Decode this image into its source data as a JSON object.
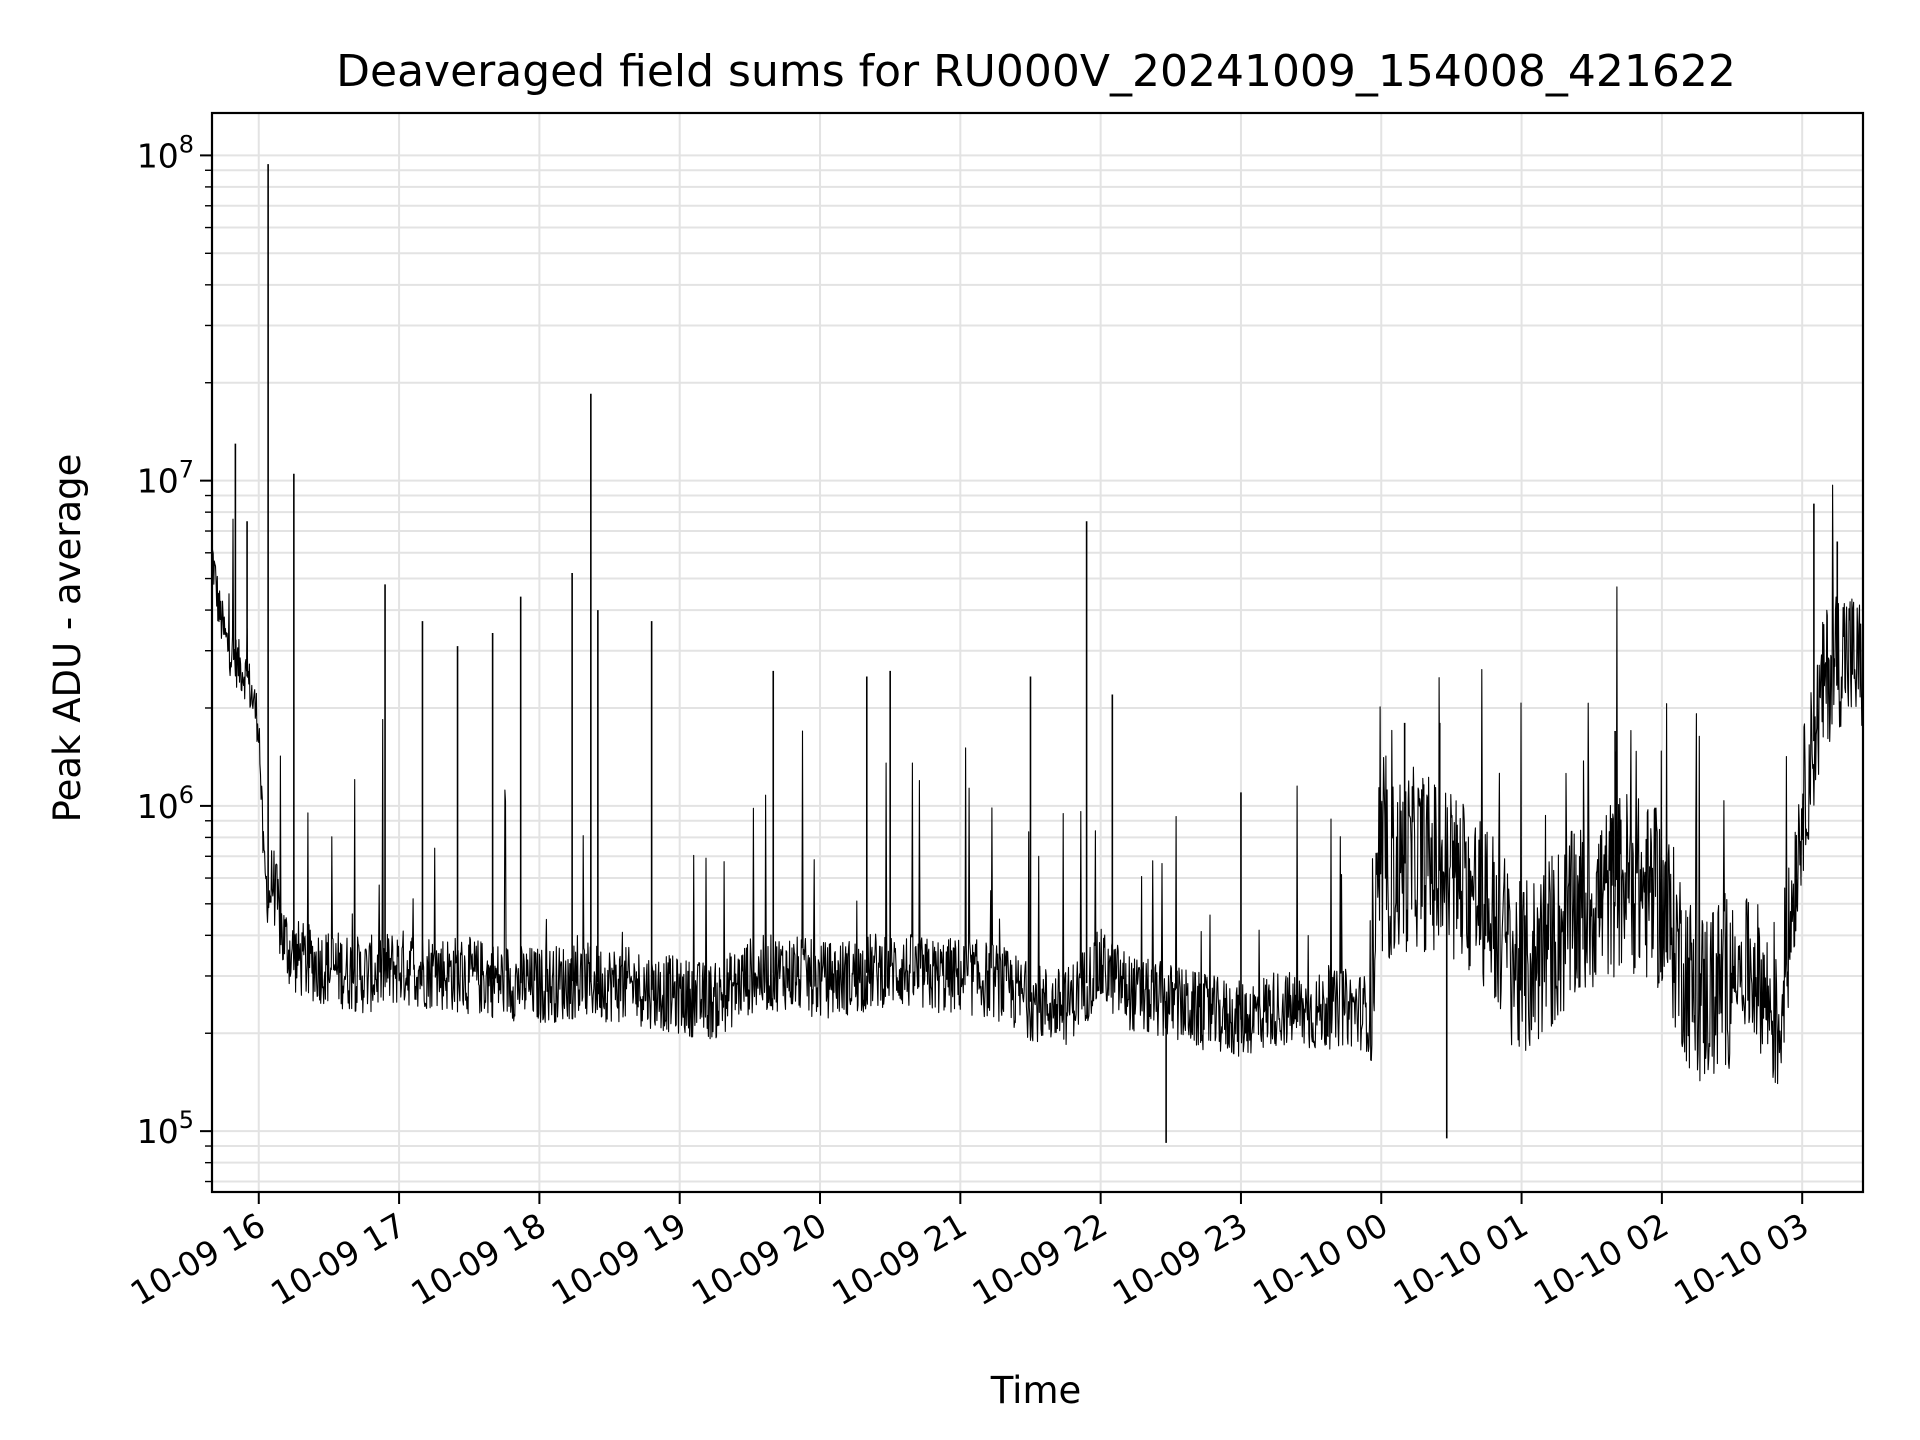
{
  "chart_data": {
    "type": "line",
    "title": "Deaveraged field sums for RU000V_20241009_154008_421622",
    "xlabel": "Time",
    "ylabel": "Peak ADU - average",
    "yscale": "log",
    "ylim": [
      65000,
      135000000
    ],
    "xlim": [
      "2024-10-09 15:40",
      "2024-10-10 03:26"
    ],
    "x_ticks": [
      {
        "t": "2024-10-09 16:00",
        "label": "10-09 16"
      },
      {
        "t": "2024-10-09 17:00",
        "label": "10-09 17"
      },
      {
        "t": "2024-10-09 18:00",
        "label": "10-09 18"
      },
      {
        "t": "2024-10-09 19:00",
        "label": "10-09 19"
      },
      {
        "t": "2024-10-09 20:00",
        "label": "10-09 20"
      },
      {
        "t": "2024-10-09 21:00",
        "label": "10-09 21"
      },
      {
        "t": "2024-10-09 22:00",
        "label": "10-09 22"
      },
      {
        "t": "2024-10-09 23:00",
        "label": "10-09 23"
      },
      {
        "t": "2024-10-10 00:00",
        "label": "10-10 00"
      },
      {
        "t": "2024-10-10 01:00",
        "label": "10-10 01"
      },
      {
        "t": "2024-10-10 02:00",
        "label": "10-10 02"
      },
      {
        "t": "2024-10-10 03:00",
        "label": "10-10 03"
      }
    ],
    "y_ticks": [
      {
        "value": 100000,
        "base": "10",
        "exp": "5"
      },
      {
        "value": 1000000,
        "base": "10",
        "exp": "6"
      },
      {
        "value": 10000000,
        "base": "10",
        "exp": "7"
      },
      {
        "value": 100000000,
        "base": "10",
        "exp": "8"
      }
    ],
    "grid": true,
    "line_color": "#000000",
    "series": [
      {
        "x": [
          "2024-10-09 15:40",
          "2024-10-09 15:43",
          "2024-10-09 15:46",
          "2024-10-09 15:50",
          "2024-10-09 15:55",
          "2024-10-09 16:00",
          "2024-10-09 16:02",
          "2024-10-09 16:04",
          "2024-10-09 16:06",
          "2024-10-09 16:10",
          "2024-10-09 16:14",
          "2024-10-09 16:20",
          "2024-10-09 16:30",
          "2024-10-09 16:45",
          "2024-10-09 17:00",
          "2024-10-09 17:15",
          "2024-10-09 17:30",
          "2024-10-09 17:45",
          "2024-10-09 18:00",
          "2024-10-09 18:15",
          "2024-10-09 18:30",
          "2024-10-09 18:45",
          "2024-10-09 19:00",
          "2024-10-09 19:15",
          "2024-10-09 19:30",
          "2024-10-09 19:45",
          "2024-10-09 20:00",
          "2024-10-09 20:15",
          "2024-10-09 20:30",
          "2024-10-09 20:45",
          "2024-10-09 21:00",
          "2024-10-09 21:15",
          "2024-10-09 21:30",
          "2024-10-09 21:45",
          "2024-10-09 22:00",
          "2024-10-09 22:15",
          "2024-10-09 22:30",
          "2024-10-09 22:45",
          "2024-10-09 23:00",
          "2024-10-09 23:15",
          "2024-10-09 23:30",
          "2024-10-09 23:45",
          "2024-10-09 23:55",
          "2024-10-10 00:00",
          "2024-10-10 00:15",
          "2024-10-10 00:30",
          "2024-10-10 00:45",
          "2024-10-10 01:00",
          "2024-10-10 01:15",
          "2024-10-10 01:30",
          "2024-10-10 01:45",
          "2024-10-10 02:00",
          "2024-10-10 02:15",
          "2024-10-10 02:30",
          "2024-10-10 02:40",
          "2024-10-10 02:50",
          "2024-10-10 03:00",
          "2024-10-10 03:10",
          "2024-10-10 03:18",
          "2024-10-10 03:26"
        ],
        "y": [
          6000000,
          4000000,
          3200000,
          2800000,
          2500000,
          1800000,
          700000,
          500000,
          600000,
          400000,
          350000,
          330000,
          320000,
          300000,
          320000,
          310000,
          300000,
          290000,
          280000,
          290000,
          285000,
          275000,
          260000,
          250000,
          300000,
          310000,
          290000,
          300000,
          320000,
          300000,
          300000,
          290000,
          250000,
          240000,
          320000,
          260000,
          250000,
          230000,
          220000,
          240000,
          230000,
          240000,
          230000,
          600000,
          700000,
          600000,
          500000,
          300000,
          400000,
          500000,
          600000,
          500000,
          250000,
          300000,
          320000,
          200000,
          1000000,
          2500000,
          3000000,
          2600000
        ]
      }
    ],
    "spikes": [
      {
        "t": "2024-10-09 16:04",
        "y": 94000000
      },
      {
        "t": "2024-10-09 15:50",
        "y": 13000000
      },
      {
        "t": "2024-10-09 16:15",
        "y": 10500000
      },
      {
        "t": "2024-10-09 15:55",
        "y": 7500000
      },
      {
        "t": "2024-10-09 18:22",
        "y": 18500000
      },
      {
        "t": "2024-10-09 21:54",
        "y": 7500000
      },
      {
        "t": "2024-10-09 16:54",
        "y": 4800000
      },
      {
        "t": "2024-10-09 17:10",
        "y": 3700000
      },
      {
        "t": "2024-10-09 17:25",
        "y": 3100000
      },
      {
        "t": "2024-10-09 17:40",
        "y": 3400000
      },
      {
        "t": "2024-10-09 17:52",
        "y": 4400000
      },
      {
        "t": "2024-10-09 18:14",
        "y": 5200000
      },
      {
        "t": "2024-10-09 18:25",
        "y": 4000000
      },
      {
        "t": "2024-10-09 18:48",
        "y": 3700000
      },
      {
        "t": "2024-10-09 19:40",
        "y": 2600000
      },
      {
        "t": "2024-10-09 20:20",
        "y": 2500000
      },
      {
        "t": "2024-10-09 20:30",
        "y": 2600000
      },
      {
        "t": "2024-10-09 21:30",
        "y": 2500000
      },
      {
        "t": "2024-10-09 22:05",
        "y": 2200000
      },
      {
        "t": "2024-10-09 23:00",
        "y": 1100000
      },
      {
        "t": "2024-10-10 00:10",
        "y": 1800000
      },
      {
        "t": "2024-10-10 00:25",
        "y": 1800000
      },
      {
        "t": "2024-10-10 01:40",
        "y": 1700000
      },
      {
        "t": "2024-10-10 03:05",
        "y": 8500000
      },
      {
        "t": "2024-10-10 03:15",
        "y": 6500000
      },
      {
        "t": "2024-10-10 00:28",
        "y": 95000
      },
      {
        "t": "2024-10-09 22:28",
        "y": 92000
      }
    ]
  }
}
